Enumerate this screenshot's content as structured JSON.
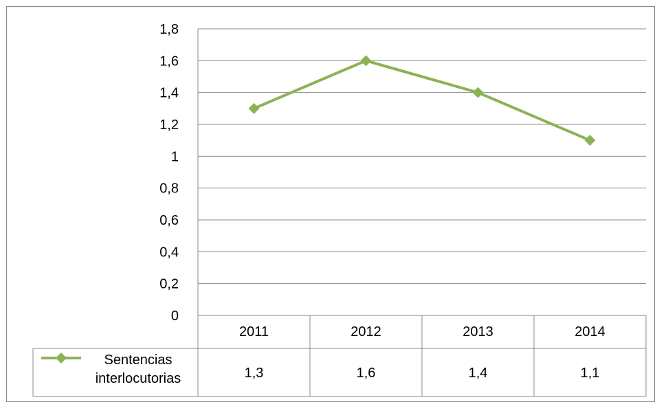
{
  "chart_data": {
    "type": "line",
    "categories": [
      "2011",
      "2012",
      "2013",
      "2014"
    ],
    "series": [
      {
        "name": "Sentencias interlocutorias",
        "values": [
          1.3,
          1.6,
          1.4,
          1.1
        ],
        "color": "#8DB254"
      }
    ],
    "y_ticks": [
      "0",
      "0,2",
      "0,4",
      "0,6",
      "0,8",
      "1",
      "1,2",
      "1,4",
      "1,6",
      "1,8"
    ],
    "table_values": [
      "1,3",
      "1,6",
      "1,4",
      "1,1"
    ],
    "legend_label_lines": [
      "Sentencias",
      "interlocutorias"
    ],
    "ylim": [
      0,
      1.8
    ],
    "grid": true,
    "legend_placement": "data-table",
    "marker": "diamond"
  }
}
